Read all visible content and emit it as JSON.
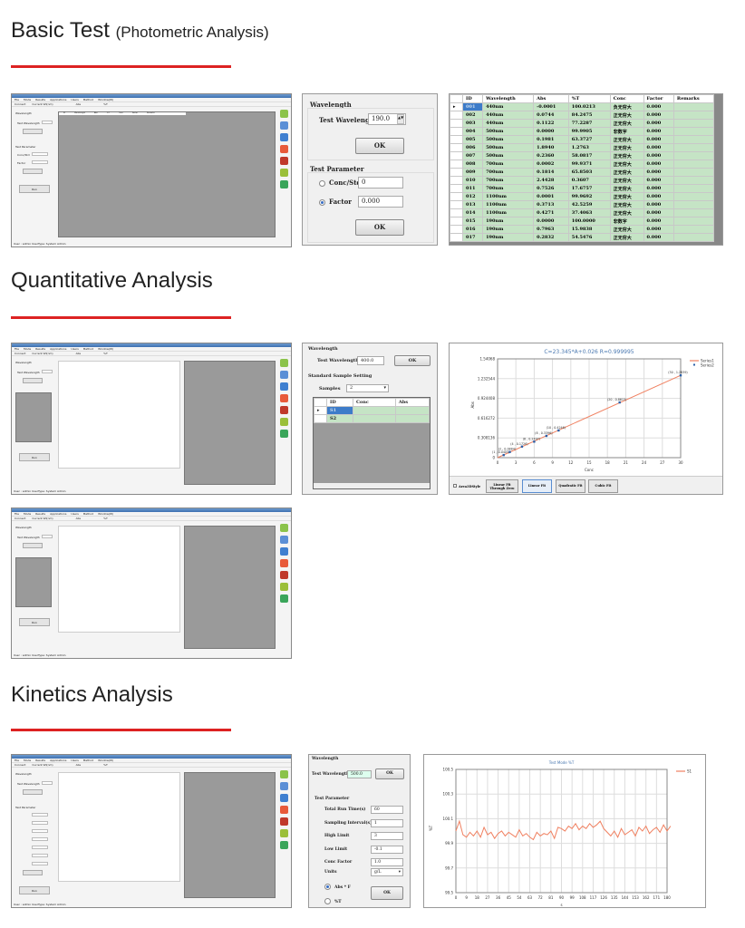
{
  "sections": [
    {
      "title": "Basic Test",
      "subtitle": "(Photometric Analysis)"
    },
    {
      "title": "Quantitative Analysis"
    },
    {
      "title": "Kinetics Analysis"
    }
  ],
  "accent": "#d22222",
  "app": {
    "menu": [
      "File",
      "Mode",
      "Results",
      "Applications",
      "Users",
      "Method",
      "Window(W)"
    ],
    "toolbar": [
      "Connect",
      "Current Wl(nm)",
      "Abs",
      "%T"
    ],
    "status": "User : admin  UserType: System Admin",
    "left_heading": "Wavelength",
    "test_wl_label": "Test Wavelength",
    "param_heading": "Test Parameter",
    "conc_label": "Conc/Std",
    "factor_label": "Factor",
    "run_label": "Run",
    "side_icons": [
      "spectrum",
      "standard-curve",
      "kinetics",
      "quantitative",
      "multi-wavelength",
      "dna-protein",
      "custom-calculation"
    ],
    "grid_cols": [
      "ID",
      "Wavelength",
      "Abs",
      "%T",
      "Conc",
      "Factor",
      "Remarks"
    ]
  },
  "basic_panel": {
    "wl_group": "Wavelength",
    "test_wl_label": "Test Wavelength",
    "test_wl_value": "190.0",
    "ok": "OK",
    "param_group": "Test Parameter",
    "conc_label": "Conc/Std",
    "conc_value": "0",
    "factor_label": "Factor",
    "factor_value": "0.000",
    "factor_selected": true
  },
  "basic_table": {
    "columns": [
      "ID",
      "Wavelength",
      "Abs",
      "%T",
      "Conc",
      "Factor",
      "Remarks"
    ],
    "rows": [
      [
        "001",
        "440nm",
        "-0.0001",
        "100.0213",
        "负无穷大",
        "0.000",
        ""
      ],
      [
        "002",
        "440nm",
        "0.0744",
        "84.2475",
        "正无穷大",
        "0.000",
        ""
      ],
      [
        "003",
        "440nm",
        "0.1122",
        "77.2287",
        "正无穷大",
        "0.000",
        ""
      ],
      [
        "004",
        "500nm",
        "0.0000",
        "99.9905",
        "非数字",
        "0.000",
        ""
      ],
      [
        "005",
        "500nm",
        "0.1981",
        "63.3727",
        "正无穷大",
        "0.000",
        ""
      ],
      [
        "006",
        "500nm",
        "1.8940",
        "1.2763",
        "正无穷大",
        "0.000",
        ""
      ],
      [
        "007",
        "500nm",
        "0.2360",
        "58.0817",
        "正无穷大",
        "0.000",
        ""
      ],
      [
        "008",
        "700nm",
        "0.0002",
        "99.9371",
        "正无穷大",
        "0.000",
        ""
      ],
      [
        "009",
        "700nm",
        "0.1814",
        "65.8503",
        "正无穷大",
        "0.000",
        ""
      ],
      [
        "010",
        "700nm",
        "2.4428",
        "0.3607",
        "正无穷大",
        "0.000",
        ""
      ],
      [
        "011",
        "700nm",
        "0.7526",
        "17.6757",
        "正无穷大",
        "0.000",
        ""
      ],
      [
        "012",
        "1100nm",
        "0.0001",
        "99.9692",
        "正无穷大",
        "0.000",
        ""
      ],
      [
        "013",
        "1100nm",
        "0.3713",
        "42.5259",
        "正无穷大",
        "0.000",
        ""
      ],
      [
        "014",
        "1100nm",
        "0.4271",
        "37.4063",
        "正无穷大",
        "0.000",
        ""
      ],
      [
        "015",
        "190nm",
        "0.0000",
        "100.0000",
        "非数字",
        "0.000",
        ""
      ],
      [
        "016",
        "190nm",
        "0.7963",
        "15.9838",
        "正无穷大",
        "0.000",
        ""
      ],
      [
        "017",
        "190nm",
        "0.2832",
        "54.5476",
        "正无穷大",
        "0.000",
        ""
      ]
    ]
  },
  "quant_panel": {
    "wl_group": "Wavelength",
    "test_wl_label": "Test Wavelength",
    "test_wl_value": "400.0",
    "ok": "OK",
    "std_group": "Standard Sample Setting",
    "samples_label": "Samples",
    "samples_value": "2",
    "columns": [
      "ID",
      "Conc",
      "Abs"
    ],
    "rows": [
      [
        "S1",
        "",
        ""
      ],
      [
        "S2",
        "",
        ""
      ]
    ]
  },
  "quant_buttons": {
    "area3d": "Area3DStyle",
    "fit_zero": "Linear Fit Through Zero",
    "linear": "Linear Fit",
    "quadratic": "Quadratic Fit",
    "cubic": "Cubic Fit"
  },
  "kin_panel": {
    "wl_group": "Wavelength",
    "test_wl_label": "Test Wavelength",
    "test_wl_value": "500.0",
    "ok": "OK",
    "param_group": "Test Parameter",
    "fields": [
      [
        "Total Run Time(s)",
        "60"
      ],
      [
        "Sampling Interval(s)",
        "1"
      ],
      [
        "High Limit",
        "3"
      ],
      [
        "Low Limit",
        "-0.1"
      ],
      [
        "Conc Factor",
        "1.0"
      ]
    ],
    "units_label": "Units",
    "units_value": "g/L",
    "abs_f": "Abs * F",
    "t": "%T",
    "abs_selected": true
  },
  "chart_data": [
    {
      "type": "scatter",
      "title": "C=23.345*A+0.026  R=0.999995",
      "xlabel": "Conc",
      "ylabel": "Abs",
      "xlim": [
        0,
        30
      ],
      "ylim": [
        0,
        1.54068
      ],
      "xticks": [
        0,
        3,
        6,
        9,
        12,
        15,
        18,
        21,
        24,
        27,
        30
      ],
      "yticks": [
        "0",
        "0.308136",
        "0.616272",
        "0.924408",
        "1.232544",
        "1.54068"
      ],
      "grid": true,
      "legend": "top-right",
      "series": [
        {
          "name": "Series1",
          "type": "line",
          "color": "#f08060",
          "x": [
            0,
            30
          ],
          "y": [
            0,
            1.284
          ]
        },
        {
          "name": "Series2",
          "type": "scatter",
          "color": "#2a5fa8",
          "x": [
            1,
            2,
            4,
            6,
            8,
            10,
            20,
            30
          ],
          "y": [
            0.0405,
            0.0884,
            0.1726,
            0.2497,
            0.3396,
            0.4246,
            0.8615,
            1.2839
          ]
        }
      ]
    },
    {
      "type": "line",
      "title": "Test Mode %T",
      "xlabel": "s",
      "ylabel": "%T",
      "xlim": [
        0,
        180
      ],
      "ylim": [
        99.5,
        100.5
      ],
      "xticks": [
        0,
        9,
        18,
        27,
        36,
        45,
        54,
        63,
        72,
        81,
        90,
        99,
        108,
        117,
        126,
        135,
        144,
        153,
        162,
        171,
        180
      ],
      "yticks": [
        "99.5",
        "99.7",
        "99.9",
        "100.1",
        "100.3",
        "100.5"
      ],
      "grid": true,
      "legend": "top-right",
      "series": [
        {
          "name": "S1",
          "color": "#f08060",
          "x_step": 3,
          "y": [
            100.0,
            100.08,
            99.97,
            99.95,
            99.99,
            99.96,
            100.0,
            99.95,
            100.03,
            99.97,
            99.99,
            99.94,
            99.98,
            100.0,
            99.96,
            99.99,
            99.97,
            99.95,
            100.01,
            99.96,
            99.98,
            99.95,
            99.93,
            99.99,
            99.96,
            99.98,
            99.97,
            100.0,
            99.94,
            100.03,
            100.02,
            100.0,
            100.04,
            100.02,
            100.06,
            100.01,
            100.04,
            100.02,
            100.06,
            100.03,
            100.05,
            100.08,
            100.02,
            99.99,
            99.96,
            100.0,
            99.95,
            100.02,
            99.97,
            99.99,
            100.01,
            99.96,
            100.03,
            100.0,
            100.04,
            99.98,
            100.01,
            100.03,
            99.99,
            100.05,
            100.0,
            100.04
          ]
        }
      ]
    }
  ]
}
